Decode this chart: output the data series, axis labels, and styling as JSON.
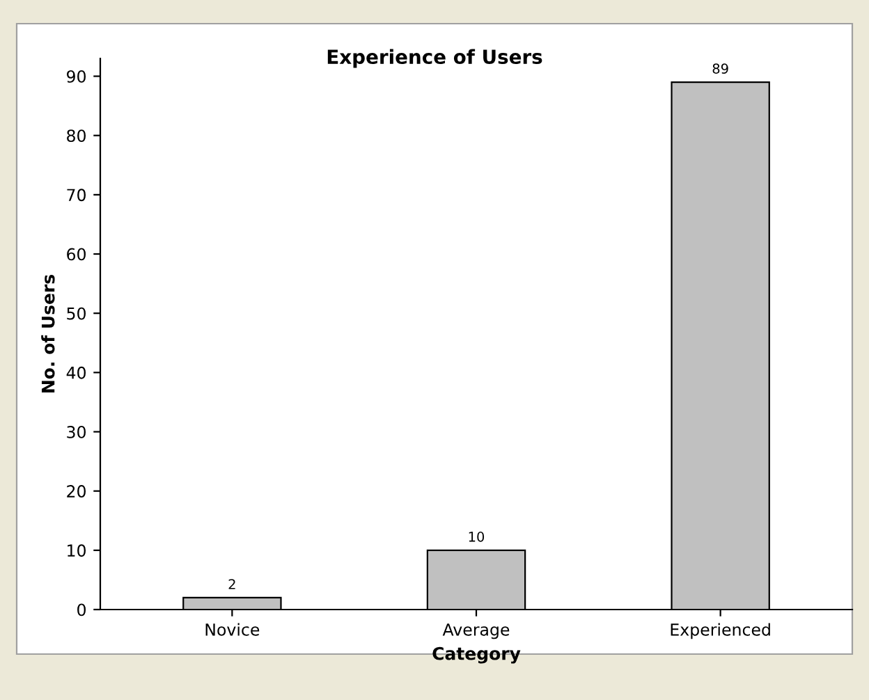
{
  "chart_data": {
    "type": "bar",
    "title": "Experience of Users",
    "xlabel": "Category",
    "ylabel": "No. of Users",
    "categories": [
      "Novice",
      "Average",
      "Experienced"
    ],
    "values": [
      2,
      10,
      89
    ],
    "color": "#c0c0c0",
    "data_labels": true,
    "ylim": [
      0,
      93
    ],
    "yticks": [
      0,
      10,
      20,
      30,
      40,
      50,
      60,
      70,
      80,
      90
    ],
    "grid": false,
    "legend": false
  }
}
